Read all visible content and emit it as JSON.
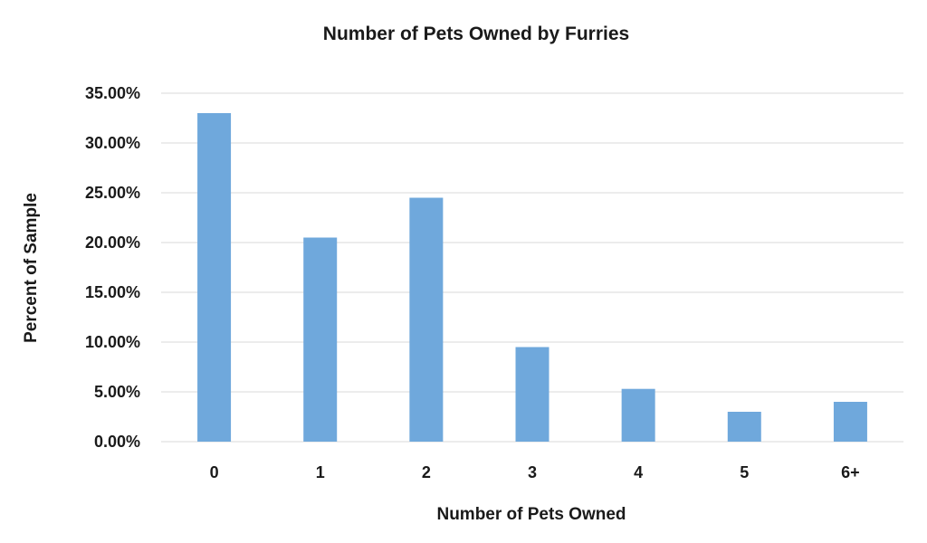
{
  "chart_data": {
    "type": "bar",
    "title": "Number of Pets Owned by Furries",
    "xlabel": "Number of Pets Owned",
    "ylabel": "Percent of Sample",
    "categories": [
      "0",
      "1",
      "2",
      "3",
      "4",
      "5",
      "6+"
    ],
    "values": [
      33.0,
      20.5,
      24.5,
      9.5,
      5.3,
      3.0,
      4.0
    ],
    "ylim": [
      0,
      35
    ],
    "yticks": [
      "0.00%",
      "5.00%",
      "10.00%",
      "15.00%",
      "20.00%",
      "25.00%",
      "30.00%",
      "35.00%"
    ],
    "ytick_values": [
      0,
      5,
      10,
      15,
      20,
      25,
      30,
      35
    ],
    "grid": true,
    "bar_color": "#6fa8dc"
  }
}
